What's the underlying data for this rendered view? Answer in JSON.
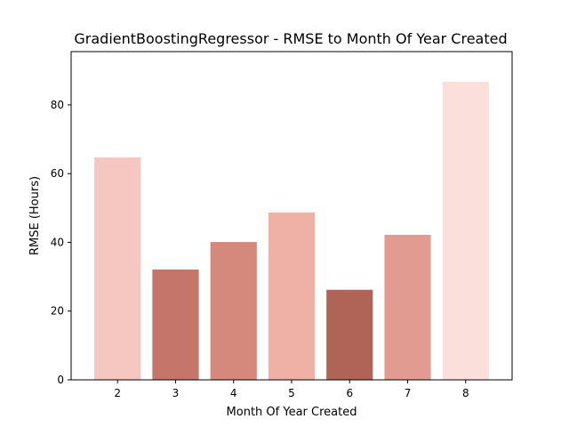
{
  "chart_data": {
    "type": "bar",
    "title": "GradientBoostingRegressor - RMSE to Month Of Year Created",
    "xlabel": "Month Of Year Created",
    "ylabel": "RMSE (Hours)",
    "categories": [
      "2",
      "3",
      "4",
      "5",
      "6",
      "7",
      "8"
    ],
    "values": [
      64.7,
      32.1,
      40.1,
      48.7,
      26.2,
      42.2,
      86.7
    ],
    "bar_colors": [
      "#f6c6c0",
      "#c6756a",
      "#d5897d",
      "#efb1a6",
      "#b06357",
      "#e19b90",
      "#fadfdb"
    ],
    "ylim": [
      0,
      95.5
    ],
    "yticks": [
      0,
      20,
      40,
      60,
      80
    ],
    "ytick_labels": [
      "0",
      "20",
      "40",
      "60",
      "80"
    ],
    "grid": false,
    "legend": "none"
  }
}
